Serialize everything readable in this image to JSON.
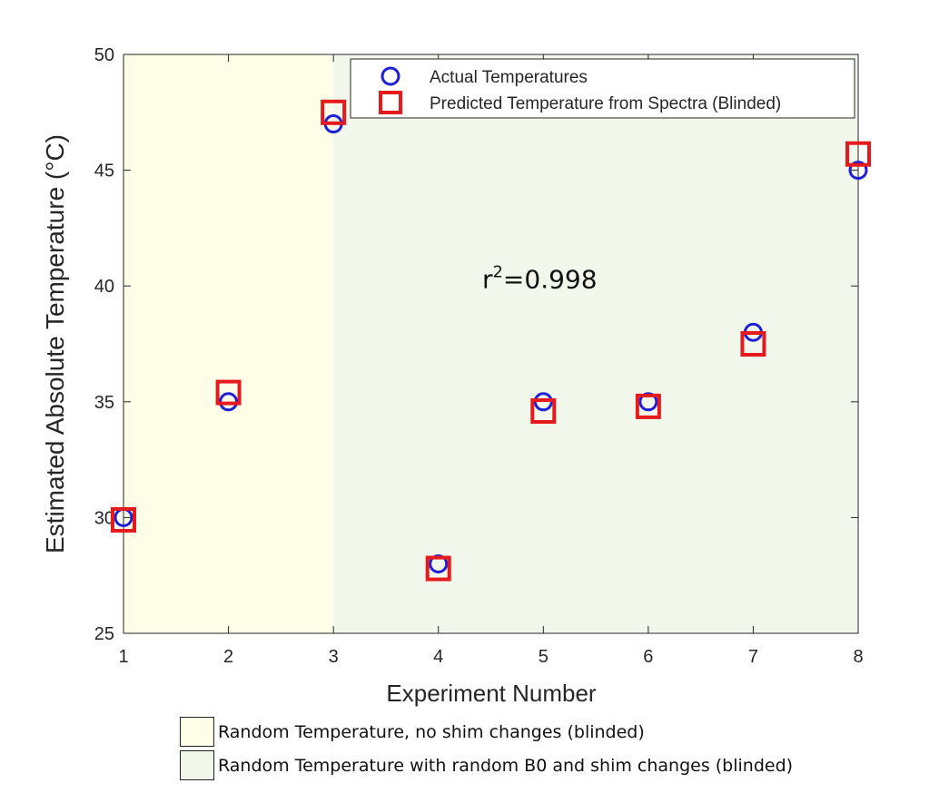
{
  "chart_data": {
    "type": "scatter",
    "xlabel": "Experiment Number",
    "ylabel": "Estimated Absolute Temperature (°C)",
    "xlim": [
      1,
      8
    ],
    "ylim": [
      25,
      50
    ],
    "xticks": [
      1,
      2,
      3,
      4,
      5,
      6,
      7,
      8
    ],
    "yticks": [
      25,
      30,
      35,
      40,
      45,
      50
    ],
    "grid": false,
    "legend_position": "top-right",
    "series": [
      {
        "name": "Actual Temperatures",
        "marker": "circle",
        "color": "#1f1fd6",
        "x": [
          1,
          2,
          3,
          4,
          5,
          6,
          7,
          8
        ],
        "y": [
          30,
          35,
          47,
          28,
          35,
          35,
          38,
          45
        ]
      },
      {
        "name": "Predicted Temperature from Spectra (Blinded)",
        "marker": "square",
        "color": "#e41a1c",
        "x": [
          1,
          2,
          3,
          4,
          5,
          6,
          7,
          8
        ],
        "y": [
          29.9,
          35.4,
          47.5,
          27.8,
          34.6,
          34.8,
          37.5,
          45.7
        ]
      }
    ],
    "regions": [
      {
        "label": "Random Temperature, no shim changes (blinded)",
        "x_range": [
          1,
          3
        ],
        "color": "#fefde8"
      },
      {
        "label": "Random Temperature with random B0 and shim changes (blinded)",
        "x_range": [
          3,
          8
        ],
        "color": "#f2f7ec"
      }
    ],
    "annotation": {
      "text_base": "r",
      "text_sup": "2",
      "text_rest": "=0.998",
      "x": 5.3,
      "y": 40.3
    }
  }
}
